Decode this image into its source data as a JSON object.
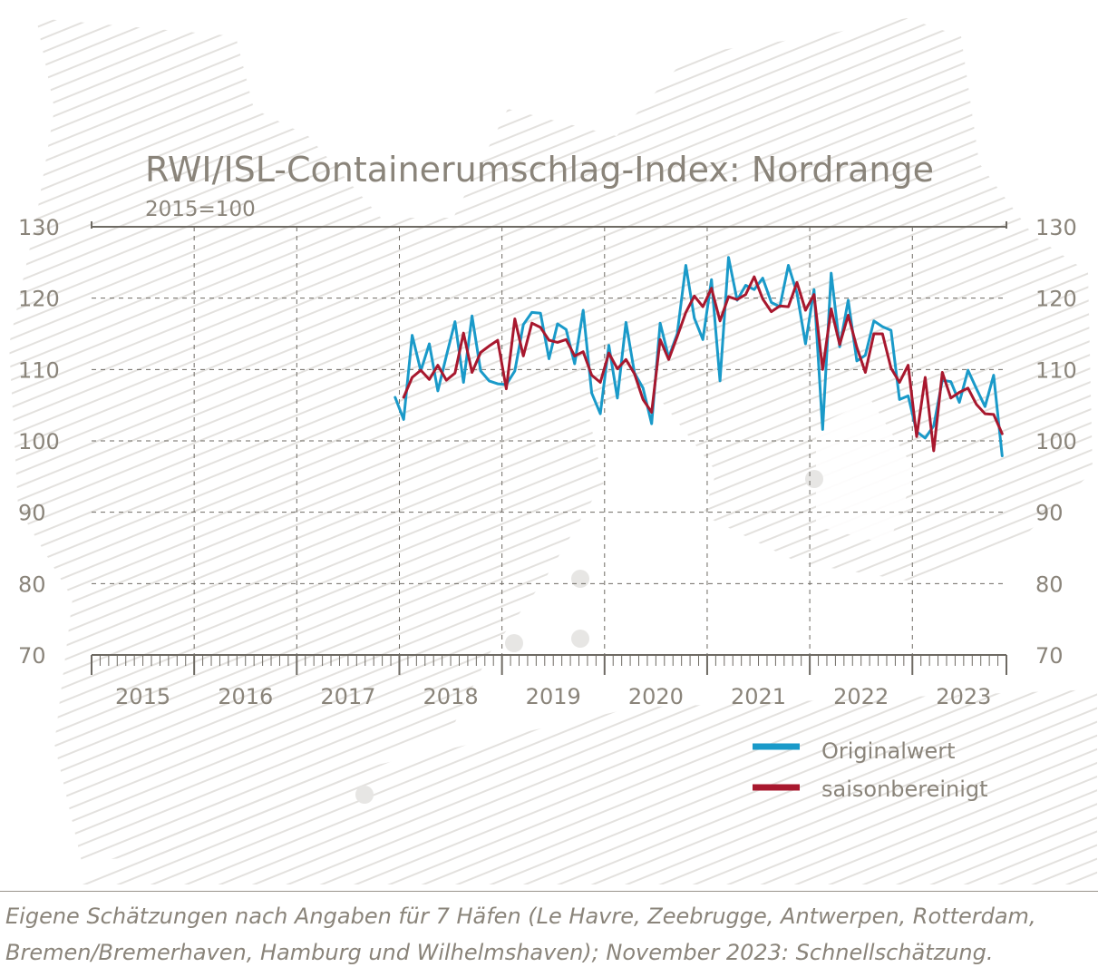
{
  "chart_data": {
    "type": "line",
    "title": "RWI/ISL-Containerumschlag-Index: Nordrange",
    "subtitle": "2015=100",
    "ylim": [
      70,
      130
    ],
    "y_ticks": [
      "70",
      "80",
      "90",
      "100",
      "110",
      "120",
      "130"
    ],
    "x_labels": [
      "2015",
      "2016",
      "2017",
      "2018",
      "2019",
      "2020",
      "2021",
      "2022",
      "2023"
    ],
    "x_start_year": 2015,
    "months": 107,
    "grid": true,
    "legend_position": "bottom-right",
    "series": [
      {
        "name": "Originalwert",
        "color": "#1a9ac9",
        "values": [
          106.1,
          103.0,
          114.8,
          109.8,
          113.6,
          107.0,
          111.9,
          116.7,
          108.2,
          117.5,
          109.8,
          108.4,
          108.0,
          107.9,
          109.8,
          116.3,
          118.0,
          117.9,
          111.5,
          116.4,
          115.6,
          110.8,
          118.3,
          106.7,
          103.8,
          113.4,
          106.0,
          116.6,
          109.5,
          107.4,
          102.4,
          116.5,
          111.7,
          115.0,
          124.6,
          117.2,
          114.2,
          122.6,
          108.4,
          125.7,
          119.7,
          121.8,
          121.2,
          122.8,
          119.4,
          118.8,
          124.6,
          120.7,
          113.6,
          121.2,
          101.6,
          123.5,
          113.2,
          119.7,
          111.2,
          112.0,
          116.8,
          116.0,
          115.5,
          105.8,
          106.3,
          101.3,
          100.4,
          102.1,
          108.5,
          108.3,
          105.4,
          109.9,
          107.3,
          104.8,
          109.2,
          97.9
        ]
      },
      {
        "name": "saisonbereinigt",
        "color": "#a8182e",
        "values": [
          106.1,
          108.9,
          109.9,
          108.6,
          110.6,
          108.5,
          109.5,
          115.1,
          109.6,
          112.4,
          113.3,
          114.1,
          107.3,
          117.1,
          111.9,
          116.5,
          115.9,
          114.1,
          113.8,
          114.2,
          111.9,
          112.5,
          109.2,
          108.2,
          112.3,
          110.1,
          111.4,
          109.4,
          105.8,
          104.0,
          114.2,
          111.4,
          114.6,
          118.0,
          120.3,
          118.8,
          121.4,
          116.8,
          120.2,
          119.8,
          120.5,
          123.0,
          119.9,
          118.1,
          118.9,
          118.8,
          122.2,
          118.3,
          120.5,
          110.0,
          118.5,
          113.5,
          117.6,
          113.1,
          109.6,
          115.0,
          115.0,
          110.2,
          108.2,
          110.6,
          100.6,
          108.9,
          98.6,
          109.6,
          106.0,
          106.8,
          107.4,
          105.1,
          103.8,
          103.7,
          101.0
        ]
      }
    ],
    "series_offsets": [
      35,
      36
    ]
  },
  "caption": {
    "line1": "Eigene Schätzungen nach Angaben für 7 Häfen (Le Havre, Zeebrugge, Antwerpen, Rotterdam,",
    "line2": "Bremen/Bremerhaven, Hamburg und Wilhelmshaven); November 2023: Schnellschätzung."
  },
  "colors": {
    "text": "#8a847a",
    "axis": "#6e6a63",
    "grid": "#6e6a63",
    "hatch": "#e3e1de"
  }
}
